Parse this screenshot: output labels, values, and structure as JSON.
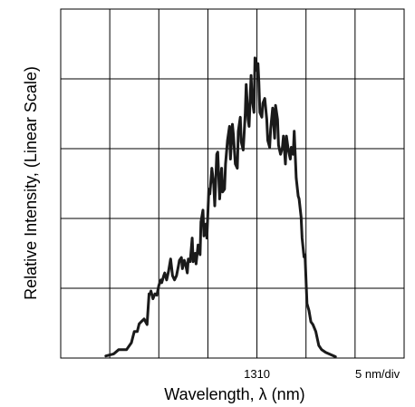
{
  "chart_data": {
    "type": "line",
    "ylabel": "Relative Intensity, (Linear Scale)",
    "xlabel": "Wavelength, λ (nm)",
    "x_tick_labels": [
      {
        "x": 1310,
        "label": "1310"
      }
    ],
    "scale_label": "5 nm/div",
    "grid": true,
    "xlim": [
      1290,
      1325
    ],
    "ylim": [
      0,
      5
    ],
    "series": [
      {
        "x": [
          1294.6,
          1295.4,
          1295.9,
          1296.7,
          1297.2,
          1297.5,
          1297.8,
          1298.0,
          1298.2,
          1298.5,
          1298.8,
          1299.0,
          1299.1,
          1299.2,
          1299.4,
          1299.6,
          1299.8,
          1300.0,
          1300.2,
          1300.3,
          1300.5,
          1300.6,
          1300.8,
          1301.0,
          1301.2,
          1301.4,
          1301.6,
          1301.8,
          1302.0,
          1302.1,
          1302.3,
          1302.4,
          1302.6,
          1302.7,
          1302.9,
          1303.0,
          1303.2,
          1303.4,
          1303.5,
          1303.7,
          1303.8,
          1304.0,
          1304.2,
          1304.3,
          1304.5,
          1304.6,
          1304.8,
          1304.9,
          1305.1,
          1305.2,
          1305.4,
          1305.6,
          1305.7,
          1305.9,
          1306.0,
          1306.2,
          1306.4,
          1306.5,
          1306.7,
          1306.8,
          1307.0,
          1307.2,
          1307.3,
          1307.5,
          1307.6,
          1307.8,
          1308.0,
          1308.1,
          1308.3,
          1308.4,
          1308.6,
          1308.8,
          1308.9,
          1309.1,
          1309.2,
          1309.4,
          1309.5,
          1309.7,
          1309.8,
          1310.0,
          1310.1,
          1310.2,
          1310.3,
          1310.5,
          1310.6,
          1310.8,
          1311.0,
          1311.1,
          1311.3,
          1311.4,
          1311.6,
          1311.8,
          1311.9,
          1312.1,
          1312.2,
          1312.4,
          1312.6,
          1312.7,
          1312.9,
          1313.0,
          1313.2,
          1313.4,
          1313.5,
          1313.7,
          1313.8,
          1314.0,
          1314.2,
          1314.3,
          1314.5,
          1314.6,
          1314.8,
          1314.9,
          1315.1,
          1315.3,
          1315.5,
          1315.7,
          1316.0,
          1316.3,
          1316.6,
          1317.0,
          1317.5,
          1318.0
        ],
        "y": [
          0.03,
          0.06,
          0.12,
          0.12,
          0.22,
          0.38,
          0.38,
          0.49,
          0.52,
          0.56,
          0.48,
          0.92,
          0.92,
          0.96,
          0.85,
          0.92,
          0.9,
          1.04,
          1.12,
          1.08,
          1.18,
          1.22,
          1.12,
          1.25,
          1.42,
          1.18,
          1.12,
          1.18,
          1.32,
          1.4,
          1.44,
          1.28,
          1.4,
          1.36,
          1.22,
          1.42,
          1.38,
          1.72,
          1.38,
          1.5,
          1.35,
          1.62,
          1.48,
          1.95,
          2.12,
          1.75,
          1.92,
          1.72,
          2.42,
          2.35,
          2.72,
          2.48,
          2.18,
          2.92,
          2.95,
          2.28,
          2.72,
          2.38,
          2.42,
          2.78,
          3.12,
          3.32,
          2.85,
          3.35,
          3.2,
          2.78,
          2.72,
          3.25,
          3.45,
          3.1,
          2.98,
          3.48,
          3.92,
          3.42,
          3.32,
          4.05,
          3.72,
          3.52,
          4.3,
          4.12,
          4.22,
          3.95,
          3.52,
          3.45,
          3.65,
          3.72,
          3.42,
          3.12,
          3.02,
          3.28,
          3.58,
          3.15,
          3.62,
          3.42,
          3.05,
          2.92,
          3.02,
          3.18,
          2.78,
          3.18,
          2.98,
          2.85,
          3.02,
          2.92,
          3.25,
          2.58,
          2.32,
          2.28,
          2.02,
          1.72,
          1.45,
          1.48,
          0.78,
          0.68,
          0.52,
          0.48,
          0.38,
          0.18,
          0.12,
          0.08,
          0.05,
          0.02
        ]
      }
    ]
  }
}
